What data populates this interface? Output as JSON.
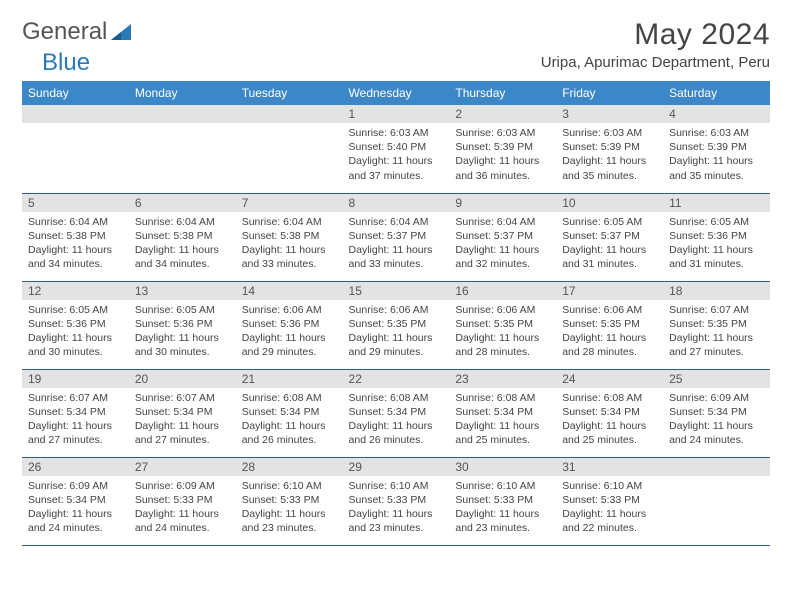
{
  "logo": {
    "text_gray": "General",
    "text_blue": "Blue"
  },
  "title": "May 2024",
  "location": "Uripa, Apurimac Department, Peru",
  "colors": {
    "header_bg": "#3b87c8",
    "daynum_bg": "#e3e3e3",
    "row_divider": "#2f5d87",
    "text": "#444444",
    "logo_gray": "#555555",
    "logo_blue": "#2a7ab8",
    "background": "#ffffff"
  },
  "typography": {
    "title_fontsize": 30,
    "location_fontsize": 15,
    "dayhead_fontsize": 12,
    "daynum_fontsize": 12,
    "body_fontsize": 10.5
  },
  "day_names": [
    "Sunday",
    "Monday",
    "Tuesday",
    "Wednesday",
    "Thursday",
    "Friday",
    "Saturday"
  ],
  "weeks": [
    [
      {
        "n": "",
        "sunrise": "",
        "sunset": "",
        "daylight": ""
      },
      {
        "n": "",
        "sunrise": "",
        "sunset": "",
        "daylight": ""
      },
      {
        "n": "",
        "sunrise": "",
        "sunset": "",
        "daylight": ""
      },
      {
        "n": "1",
        "sunrise": "Sunrise: 6:03 AM",
        "sunset": "Sunset: 5:40 PM",
        "daylight": "Daylight: 11 hours and 37 minutes."
      },
      {
        "n": "2",
        "sunrise": "Sunrise: 6:03 AM",
        "sunset": "Sunset: 5:39 PM",
        "daylight": "Daylight: 11 hours and 36 minutes."
      },
      {
        "n": "3",
        "sunrise": "Sunrise: 6:03 AM",
        "sunset": "Sunset: 5:39 PM",
        "daylight": "Daylight: 11 hours and 35 minutes."
      },
      {
        "n": "4",
        "sunrise": "Sunrise: 6:03 AM",
        "sunset": "Sunset: 5:39 PM",
        "daylight": "Daylight: 11 hours and 35 minutes."
      }
    ],
    [
      {
        "n": "5",
        "sunrise": "Sunrise: 6:04 AM",
        "sunset": "Sunset: 5:38 PM",
        "daylight": "Daylight: 11 hours and 34 minutes."
      },
      {
        "n": "6",
        "sunrise": "Sunrise: 6:04 AM",
        "sunset": "Sunset: 5:38 PM",
        "daylight": "Daylight: 11 hours and 34 minutes."
      },
      {
        "n": "7",
        "sunrise": "Sunrise: 6:04 AM",
        "sunset": "Sunset: 5:38 PM",
        "daylight": "Daylight: 11 hours and 33 minutes."
      },
      {
        "n": "8",
        "sunrise": "Sunrise: 6:04 AM",
        "sunset": "Sunset: 5:37 PM",
        "daylight": "Daylight: 11 hours and 33 minutes."
      },
      {
        "n": "9",
        "sunrise": "Sunrise: 6:04 AM",
        "sunset": "Sunset: 5:37 PM",
        "daylight": "Daylight: 11 hours and 32 minutes."
      },
      {
        "n": "10",
        "sunrise": "Sunrise: 6:05 AM",
        "sunset": "Sunset: 5:37 PM",
        "daylight": "Daylight: 11 hours and 31 minutes."
      },
      {
        "n": "11",
        "sunrise": "Sunrise: 6:05 AM",
        "sunset": "Sunset: 5:36 PM",
        "daylight": "Daylight: 11 hours and 31 minutes."
      }
    ],
    [
      {
        "n": "12",
        "sunrise": "Sunrise: 6:05 AM",
        "sunset": "Sunset: 5:36 PM",
        "daylight": "Daylight: 11 hours and 30 minutes."
      },
      {
        "n": "13",
        "sunrise": "Sunrise: 6:05 AM",
        "sunset": "Sunset: 5:36 PM",
        "daylight": "Daylight: 11 hours and 30 minutes."
      },
      {
        "n": "14",
        "sunrise": "Sunrise: 6:06 AM",
        "sunset": "Sunset: 5:36 PM",
        "daylight": "Daylight: 11 hours and 29 minutes."
      },
      {
        "n": "15",
        "sunrise": "Sunrise: 6:06 AM",
        "sunset": "Sunset: 5:35 PM",
        "daylight": "Daylight: 11 hours and 29 minutes."
      },
      {
        "n": "16",
        "sunrise": "Sunrise: 6:06 AM",
        "sunset": "Sunset: 5:35 PM",
        "daylight": "Daylight: 11 hours and 28 minutes."
      },
      {
        "n": "17",
        "sunrise": "Sunrise: 6:06 AM",
        "sunset": "Sunset: 5:35 PM",
        "daylight": "Daylight: 11 hours and 28 minutes."
      },
      {
        "n": "18",
        "sunrise": "Sunrise: 6:07 AM",
        "sunset": "Sunset: 5:35 PM",
        "daylight": "Daylight: 11 hours and 27 minutes."
      }
    ],
    [
      {
        "n": "19",
        "sunrise": "Sunrise: 6:07 AM",
        "sunset": "Sunset: 5:34 PM",
        "daylight": "Daylight: 11 hours and 27 minutes."
      },
      {
        "n": "20",
        "sunrise": "Sunrise: 6:07 AM",
        "sunset": "Sunset: 5:34 PM",
        "daylight": "Daylight: 11 hours and 27 minutes."
      },
      {
        "n": "21",
        "sunrise": "Sunrise: 6:08 AM",
        "sunset": "Sunset: 5:34 PM",
        "daylight": "Daylight: 11 hours and 26 minutes."
      },
      {
        "n": "22",
        "sunrise": "Sunrise: 6:08 AM",
        "sunset": "Sunset: 5:34 PM",
        "daylight": "Daylight: 11 hours and 26 minutes."
      },
      {
        "n": "23",
        "sunrise": "Sunrise: 6:08 AM",
        "sunset": "Sunset: 5:34 PM",
        "daylight": "Daylight: 11 hours and 25 minutes."
      },
      {
        "n": "24",
        "sunrise": "Sunrise: 6:08 AM",
        "sunset": "Sunset: 5:34 PM",
        "daylight": "Daylight: 11 hours and 25 minutes."
      },
      {
        "n": "25",
        "sunrise": "Sunrise: 6:09 AM",
        "sunset": "Sunset: 5:34 PM",
        "daylight": "Daylight: 11 hours and 24 minutes."
      }
    ],
    [
      {
        "n": "26",
        "sunrise": "Sunrise: 6:09 AM",
        "sunset": "Sunset: 5:34 PM",
        "daylight": "Daylight: 11 hours and 24 minutes."
      },
      {
        "n": "27",
        "sunrise": "Sunrise: 6:09 AM",
        "sunset": "Sunset: 5:33 PM",
        "daylight": "Daylight: 11 hours and 24 minutes."
      },
      {
        "n": "28",
        "sunrise": "Sunrise: 6:10 AM",
        "sunset": "Sunset: 5:33 PM",
        "daylight": "Daylight: 11 hours and 23 minutes."
      },
      {
        "n": "29",
        "sunrise": "Sunrise: 6:10 AM",
        "sunset": "Sunset: 5:33 PM",
        "daylight": "Daylight: 11 hours and 23 minutes."
      },
      {
        "n": "30",
        "sunrise": "Sunrise: 6:10 AM",
        "sunset": "Sunset: 5:33 PM",
        "daylight": "Daylight: 11 hours and 23 minutes."
      },
      {
        "n": "31",
        "sunrise": "Sunrise: 6:10 AM",
        "sunset": "Sunset: 5:33 PM",
        "daylight": "Daylight: 11 hours and 22 minutes."
      },
      {
        "n": "",
        "sunrise": "",
        "sunset": "",
        "daylight": ""
      }
    ]
  ]
}
